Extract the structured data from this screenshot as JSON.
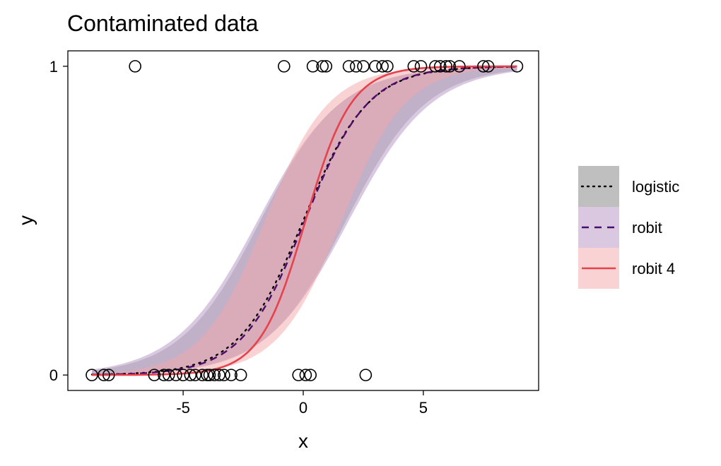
{
  "chart_data": {
    "type": "line",
    "title": "Contaminated data",
    "xlabel": "x",
    "ylabel": "y",
    "xlim": [
      -9.8,
      9.8
    ],
    "ylim": [
      -0.05,
      1.05
    ],
    "x_ticks": [
      -5,
      0,
      5
    ],
    "x_tick_labels": [
      "-5",
      "0",
      "5"
    ],
    "y_ticks": [
      0,
      1
    ],
    "y_tick_labels": [
      "0",
      "1"
    ],
    "grid": false,
    "legend_position": "right",
    "legend": [
      {
        "label": "logistic",
        "line_color": "#000000",
        "line_style": "dotted",
        "band_color": "#bfbfbf"
      },
      {
        "label": "robit",
        "line_color": "#4b0c6b",
        "line_style": "dashed",
        "band_color": "#d9c8e0"
      },
      {
        "label": "robit 4",
        "line_color": "#e5424d",
        "line_style": "solid",
        "band_color": "#f9d3d4"
      }
    ],
    "x_range": [
      -8.8,
      8.9
    ],
    "series": [
      {
        "name": "logistic",
        "model": {
          "type": "logistic",
          "intercept": 0.0,
          "slope": 0.74
        },
        "band": {
          "lo": {
            "intercept": -1.07,
            "slope": 0.6
          },
          "hi": {
            "intercept": 1.07,
            "slope": 0.6
          }
        },
        "color": "#000000",
        "dash": "dotted",
        "band_color": "#808080",
        "band_opacity": 0.35
      },
      {
        "name": "robit",
        "model": {
          "type": "logistic",
          "intercept": -0.05,
          "slope": 0.76
        },
        "band": {
          "lo": {
            "intercept": -1.1,
            "slope": 0.58
          },
          "hi": {
            "intercept": 1.1,
            "slope": 0.58
          }
        },
        "color": "#4b0c6b",
        "dash": "dashed",
        "band_color": "#a887ba",
        "band_opacity": 0.45
      },
      {
        "name": "robit 4",
        "model": {
          "type": "logistic",
          "intercept": -0.1,
          "slope": 1.05
        },
        "band": {
          "lo": {
            "intercept": -1.2,
            "slope": 0.75
          },
          "hi": {
            "intercept": 1.2,
            "slope": 0.75
          }
        },
        "color": "#e5424d",
        "dash": "solid",
        "band_color": "#f4a6a8",
        "band_opacity": 0.5
      }
    ],
    "points": {
      "y1_x": [
        -7.0,
        -0.8,
        0.4,
        0.8,
        0.95,
        1.9,
        2.2,
        2.5,
        3.0,
        3.3,
        3.5,
        4.6,
        4.9,
        5.5,
        5.7,
        5.95,
        6.1,
        6.5,
        7.5,
        7.7,
        8.9
      ],
      "y0_x": [
        -8.8,
        -8.3,
        -8.1,
        -6.2,
        -5.8,
        -5.6,
        -5.3,
        -5.0,
        -4.7,
        -4.5,
        -4.2,
        -4.0,
        -3.9,
        -3.7,
        -3.5,
        -3.3,
        -3.0,
        -2.6,
        -0.2,
        0.1,
        0.3,
        2.6
      ]
    }
  }
}
